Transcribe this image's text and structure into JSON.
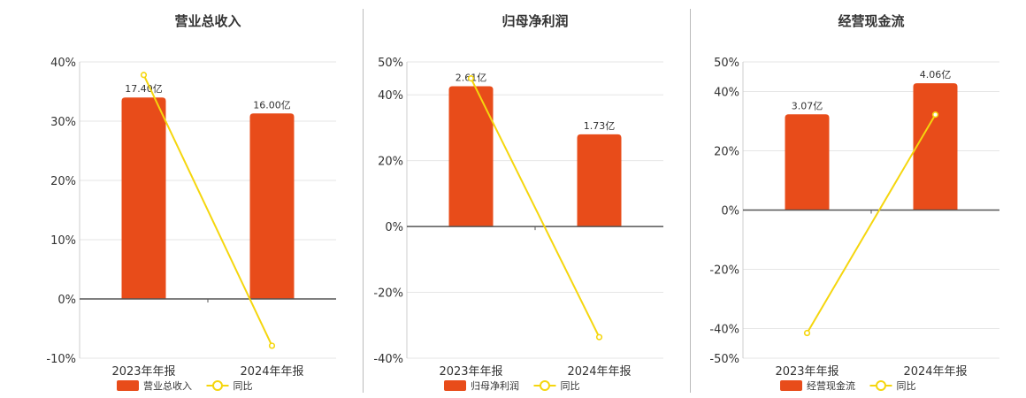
{
  "colors": {
    "bar": "#e84c1a",
    "line": "#f5d60e",
    "grid": "#e6e6e6",
    "axis": "#555555"
  },
  "chart_data": [
    {
      "type": "bar",
      "title": "营业总收入",
      "categories": [
        "2023年年报",
        "2024年年报"
      ],
      "series": [
        {
          "name": "营业总收入",
          "type": "bar",
          "values": [
            17.4,
            16.0
          ],
          "labels": [
            "17.40亿",
            "16.00亿"
          ]
        },
        {
          "name": "同比",
          "type": "line",
          "values": [
            37.8,
            -7.9
          ]
        }
      ],
      "yticks": [
        "40%",
        "30%",
        "20%",
        "10%",
        "0%",
        "-10%"
      ],
      "ylim": [
        -10,
        40
      ],
      "bar_pct": [
        34.0,
        31.3
      ],
      "legend": "bottom"
    },
    {
      "type": "bar",
      "title": "归母净利润",
      "categories": [
        "2023年年报",
        "2024年年报"
      ],
      "series": [
        {
          "name": "归母净利润",
          "type": "bar",
          "values": [
            2.61,
            1.73
          ],
          "labels": [
            "2.61亿",
            "1.73亿"
          ]
        },
        {
          "name": "同比",
          "type": "line",
          "values": [
            45.0,
            -33.6
          ]
        }
      ],
      "yticks": [
        "50%",
        "40%",
        "20%",
        "0%",
        "-20%",
        "-40%"
      ],
      "ylim": [
        -40,
        50
      ],
      "bar_pct": [
        42.6,
        28.0
      ],
      "legend": "bottom"
    },
    {
      "type": "bar",
      "title": "经营现金流",
      "categories": [
        "2023年年报",
        "2024年年报"
      ],
      "series": [
        {
          "name": "经营现金流",
          "type": "bar",
          "values": [
            3.07,
            4.06
          ],
          "labels": [
            "3.07亿",
            "4.06亿"
          ]
        },
        {
          "name": "同比",
          "type": "line",
          "values": [
            -41.5,
            32.2
          ]
        }
      ],
      "yticks": [
        "50%",
        "40%",
        "20%",
        "0%",
        "-20%",
        "-40%",
        "-50%"
      ],
      "ylim": [
        -50,
        50
      ],
      "bar_pct": [
        32.3,
        42.8
      ],
      "legend": "bottom"
    }
  ]
}
